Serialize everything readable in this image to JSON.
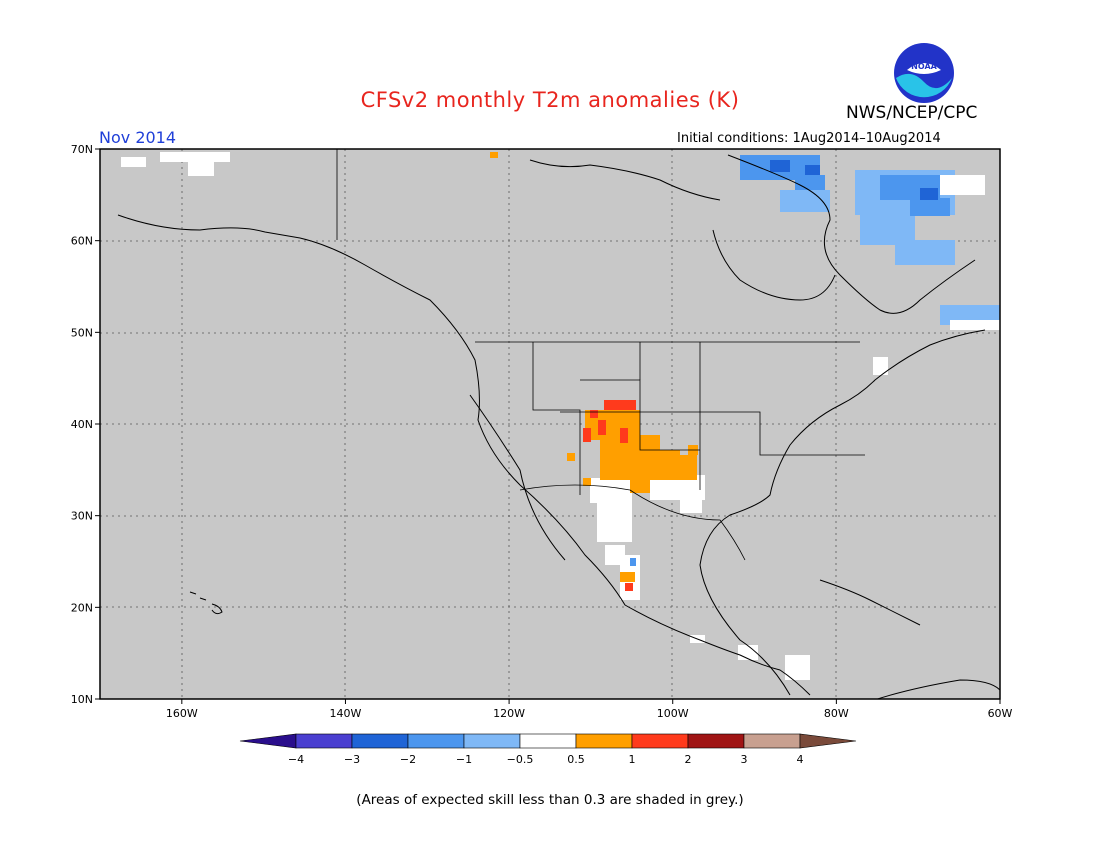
{
  "title": "CFSv2 monthly T2m anomalies (K)",
  "organization": "NWS/NCEP/CPC",
  "logo_text": "NOAA",
  "forecast_month": "Nov 2014",
  "initial_conditions": "Initial conditions: 1Aug2014–10Aug2014",
  "footnote": "(Areas of expected skill less than 0.3 are shaded in grey.)",
  "colors": {
    "no_skill": "#c8c8c8",
    "coast": "#000000",
    "frame": "#000000"
  },
  "map": {
    "lat_ticks": [
      {
        "value": 70,
        "label": "70N"
      },
      {
        "value": 60,
        "label": "60N"
      },
      {
        "value": 50,
        "label": "50N"
      },
      {
        "value": 40,
        "label": "40N"
      },
      {
        "value": 30,
        "label": "30N"
      },
      {
        "value": 20,
        "label": "20N"
      },
      {
        "value": 10,
        "label": "10N"
      }
    ],
    "lon_ticks": [
      {
        "value": -160,
        "label": "160W"
      },
      {
        "value": -140,
        "label": "140W"
      },
      {
        "value": -120,
        "label": "120W"
      },
      {
        "value": -100,
        "label": "100W"
      },
      {
        "value": -80,
        "label": "80W"
      },
      {
        "value": -60,
        "label": "60W"
      }
    ],
    "anomaly_regions": [
      {
        "name": "central-rockies-plains",
        "class": "0.5 to 1",
        "color": "#ff9f00"
      },
      {
        "name": "colorado-new-mexico-core",
        "class": "1 to 2",
        "color": "#ff3a1c"
      },
      {
        "name": "west-mexico",
        "class": "-0.5 to 0.5",
        "color": "#ffffff"
      },
      {
        "name": "hudson-bay-north",
        "class": "-2 to -1",
        "color": "#4c96ee"
      },
      {
        "name": "labrador-quebec",
        "class": "-1 to -0.5",
        "color": "#7fb8f6"
      }
    ]
  },
  "colorbar": {
    "labels": [
      "−4",
      "−3",
      "−2",
      "−1",
      "−0.5",
      "0.5",
      "1",
      "2",
      "3",
      "4"
    ],
    "colors": [
      "#2a0e8c",
      "#4a3fd0",
      "#1f64d6",
      "#4c96ee",
      "#7fb8f6",
      "#ffffff",
      "#ff9f00",
      "#ff3a1c",
      "#a01414",
      "#c8a090",
      "#7a4a3a"
    ]
  }
}
